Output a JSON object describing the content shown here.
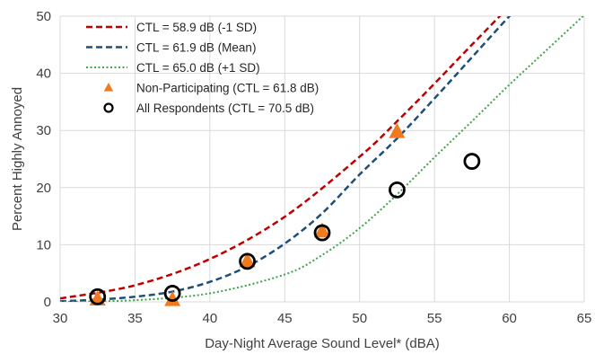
{
  "chart_data": {
    "type": "scatter",
    "title": "",
    "xlabel": "Day-Night Average Sound Level* (dBA)",
    "ylabel": "Percent Highly Annoyed",
    "xlim": [
      30,
      65
    ],
    "ylim": [
      0,
      50
    ],
    "x_ticks": [
      30,
      35,
      40,
      45,
      50,
      55,
      60,
      65
    ],
    "y_ticks": [
      0,
      10,
      20,
      30,
      40,
      50
    ],
    "grid": "major gridlines on both axes",
    "legend_position": "top-left",
    "series": [
      {
        "name": "CTL = 58.9 dB (-1 SD)",
        "kind": "line",
        "line_style": "dashed",
        "color": "#C00000",
        "x": [
          30,
          35,
          40,
          45,
          50,
          52.5,
          55,
          57.5,
          60,
          61.5
        ],
        "y": [
          0.6,
          2.9,
          7.5,
          14.9,
          25.4,
          31.6,
          38.2,
          45.0,
          51.7,
          55.6
        ]
      },
      {
        "name": "CTL = 61.9 dB (Mean)",
        "kind": "line",
        "line_style": "dashed",
        "color": "#1F4E79",
        "x": [
          30,
          32.5,
          35,
          37.5,
          40,
          42.5,
          45,
          47.5,
          50,
          52.5,
          55,
          57.5,
          60,
          62
        ],
        "y": [
          0.1,
          0.4,
          0.9,
          1.8,
          3.5,
          6.2,
          10.2,
          15.5,
          22.3,
          28.6,
          35.6,
          42.8,
          50.0,
          55.5
        ]
      },
      {
        "name": "CTL = 65.0 dB (+1 SD)",
        "kind": "line",
        "line_style": "dotted",
        "color": "#3EA34A",
        "x": [
          30,
          35,
          40,
          45,
          47.5,
          50,
          52.5,
          55,
          57.5,
          60,
          62.5,
          65
        ],
        "y": [
          0.0,
          0.3,
          1.5,
          4.8,
          8.2,
          12.9,
          18.8,
          25.3,
          31.6,
          38.0,
          44.1,
          50.2
        ]
      },
      {
        "name": "Non-Participating (CTL = 61.8 dB)",
        "kind": "marker",
        "marker": "triangle",
        "color": "#F07B1E",
        "x": [
          32.5,
          37.5,
          42.5,
          47.5,
          52.5
        ],
        "y": [
          0.5,
          0.4,
          7.2,
          12.4,
          29.8
        ]
      },
      {
        "name": "All  Respondents (CTL = 70.5 dB)",
        "kind": "marker",
        "marker": "open-circle",
        "color": "#000000",
        "x": [
          32.5,
          37.5,
          42.5,
          47.5,
          52.5,
          57.5
        ],
        "y": [
          0.9,
          1.5,
          7.1,
          12.1,
          19.6,
          24.6
        ]
      }
    ]
  }
}
